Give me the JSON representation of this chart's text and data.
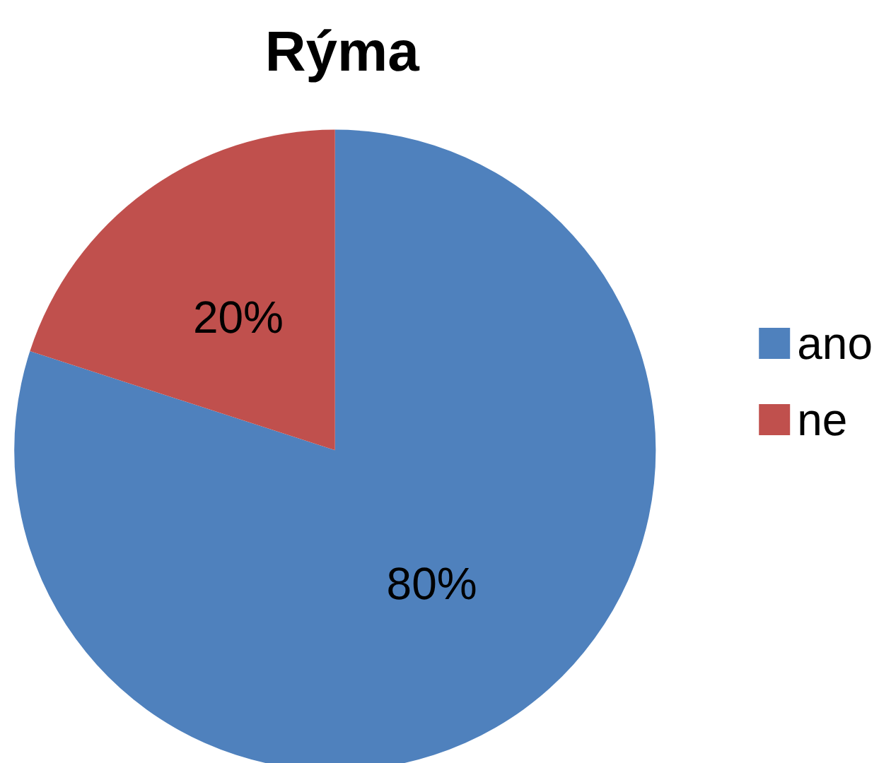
{
  "chart_data": {
    "type": "pie",
    "title": "Rýma",
    "categories": [
      "ano",
      "ne"
    ],
    "values": [
      80,
      20
    ],
    "colors": [
      "#4f81bd",
      "#c0504d"
    ],
    "value_labels": [
      "80%",
      "20%"
    ],
    "legend": "right"
  }
}
